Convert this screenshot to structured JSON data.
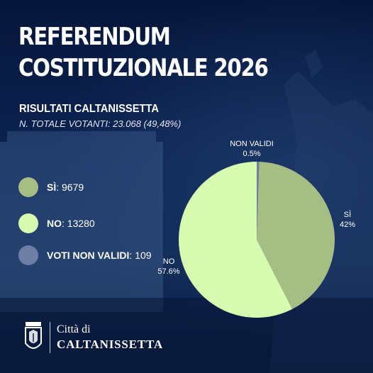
{
  "header": {
    "title_line1": "REFERENDUM",
    "title_line2": "COSTITUZIONALE 2026",
    "subtitle": "RISULTATI CALTANISSETTA",
    "voters": "N. TOTALE VOTANTI: 23.068 (49,48%)"
  },
  "legend": [
    {
      "label": "SÌ",
      "value": "9679",
      "color": "#a6be84"
    },
    {
      "label": "NO",
      "value": "13280",
      "color": "#d6fbb0"
    },
    {
      "label": "VOTI NON VALIDI",
      "value": "109",
      "color": "#6d7fa5"
    }
  ],
  "chart_data": {
    "type": "pie",
    "title": "RISULTATI CALTANISSETTA",
    "slices": [
      {
        "label": "NON VALIDI",
        "value": 0.5,
        "display": "0.5%",
        "color": "#6d7fa5"
      },
      {
        "label": "SÌ",
        "value": 42,
        "display": "42%",
        "color": "#a6be84"
      },
      {
        "label": "NO",
        "value": 57.6,
        "display": "57.6%",
        "color": "#d6fbb0"
      }
    ],
    "start": "top",
    "direction": "clockwise",
    "legend": "left"
  },
  "footer": {
    "line1": "Città di",
    "line2": "CALTANISSETTA"
  }
}
